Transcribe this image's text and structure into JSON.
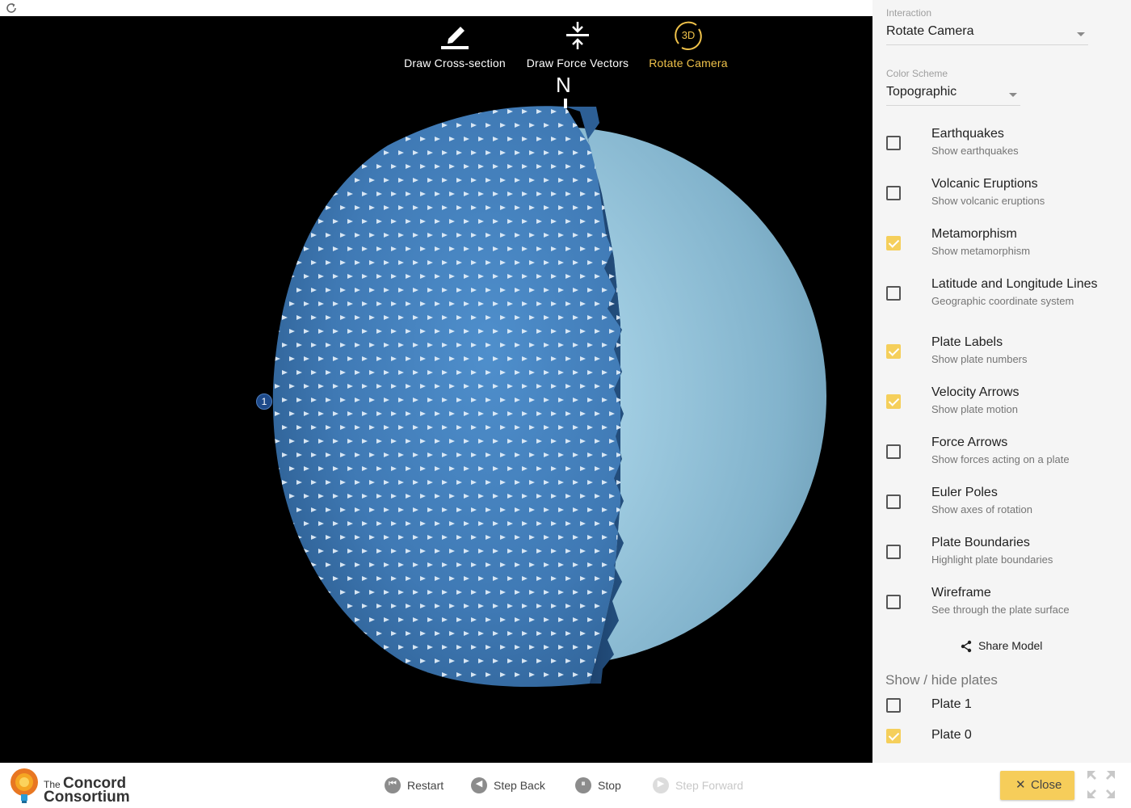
{
  "toolbar": {
    "tools": [
      {
        "label": "Draw Cross-section",
        "icon": "pencil-icon",
        "active": false
      },
      {
        "label": "Draw Force Vectors",
        "icon": "force-vectors-icon",
        "active": false
      },
      {
        "label": "Rotate Camera",
        "icon": "rotate-3d-icon",
        "active": true
      }
    ],
    "rotate_icon_text": "3D"
  },
  "globe": {
    "north_label": "N",
    "plate_badge": "1",
    "colors": {
      "plate": "#4a86c2",
      "core": "#9ccbe0",
      "background": "#000000"
    }
  },
  "panel": {
    "interaction": {
      "label": "Interaction",
      "value": "Rotate Camera"
    },
    "color_scheme": {
      "label": "Color Scheme",
      "value": "Topographic"
    },
    "options": [
      {
        "title": "Earthquakes",
        "subtitle": "Show earthquakes",
        "checked": false
      },
      {
        "title": "Volcanic Eruptions",
        "subtitle": "Show volcanic eruptions",
        "checked": false
      },
      {
        "title": "Metamorphism",
        "subtitle": "Show metamorphism",
        "checked": true
      },
      {
        "title": "Latitude and Longitude Lines",
        "subtitle": "Geographic coordinate system",
        "checked": false
      },
      {
        "title": "Plate Labels",
        "subtitle": "Show plate numbers",
        "checked": true
      },
      {
        "title": "Velocity Arrows",
        "subtitle": "Show plate motion",
        "checked": true
      },
      {
        "title": "Force Arrows",
        "subtitle": "Show forces acting on a plate",
        "checked": false
      },
      {
        "title": "Euler Poles",
        "subtitle": "Show axes of rotation",
        "checked": false
      },
      {
        "title": "Plate Boundaries",
        "subtitle": "Highlight plate boundaries",
        "checked": false
      },
      {
        "title": "Wireframe",
        "subtitle": "See through the plate surface",
        "checked": false
      }
    ],
    "share_label": "Share Model",
    "plates_header": "Show / hide plates",
    "plates": [
      {
        "label": "Plate 1",
        "checked": false
      },
      {
        "label": "Plate 0",
        "checked": true
      }
    ],
    "accent_color": "#f5cf5b"
  },
  "bottom": {
    "logo": {
      "line1_small": "The",
      "line1_big": "Concord",
      "line2": "Consortium"
    },
    "controls": [
      {
        "label": "Restart",
        "icon": "restart-icon",
        "disabled": false
      },
      {
        "label": "Step Back",
        "icon": "step-back-icon",
        "disabled": false
      },
      {
        "label": "Stop",
        "icon": "pause-icon",
        "disabled": false
      },
      {
        "label": "Step Forward",
        "icon": "step-forward-icon",
        "disabled": true
      }
    ],
    "close_label": "Close"
  }
}
